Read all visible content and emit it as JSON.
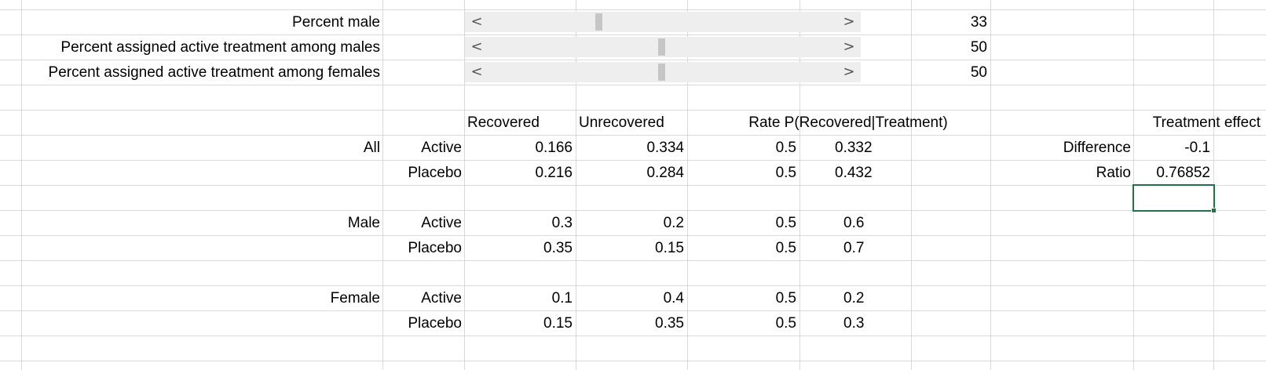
{
  "controls": [
    {
      "label": "Percent male",
      "value": "33",
      "fraction": 0.33
    },
    {
      "label": "Percent assigned active treatment among males",
      "value": "50",
      "fraction": 0.5
    },
    {
      "label": "Percent assigned active treatment among females",
      "value": "50",
      "fraction": 0.5
    }
  ],
  "headers": {
    "recovered": "Recovered",
    "unrecovered": "Unrecovered",
    "rate": "Rate P(Recovered|Treatment)",
    "treatment_effect": "Treatment effect"
  },
  "groups": {
    "all": "All",
    "male": "Male",
    "female": "Female"
  },
  "rows": {
    "all_active": {
      "treatment": "Active",
      "recovered": "0.166",
      "unrecovered": "0.334",
      "p": "0.5",
      "rate": "0.332"
    },
    "all_placebo": {
      "treatment": "Placebo",
      "recovered": "0.216",
      "unrecovered": "0.284",
      "p": "0.5",
      "rate": "0.432"
    },
    "male_active": {
      "treatment": "Active",
      "recovered": "0.3",
      "unrecovered": "0.2",
      "p": "0.5",
      "rate": "0.6"
    },
    "male_placebo": {
      "treatment": "Placebo",
      "recovered": "0.35",
      "unrecovered": "0.15",
      "p": "0.5",
      "rate": "0.7"
    },
    "female_active": {
      "treatment": "Active",
      "recovered": "0.1",
      "unrecovered": "0.4",
      "p": "0.5",
      "rate": "0.2"
    },
    "female_placebo": {
      "treatment": "Placebo",
      "recovered": "0.15",
      "unrecovered": "0.35",
      "p": "0.5",
      "rate": "0.3"
    }
  },
  "effect": {
    "difference_label": "Difference",
    "difference_value": "-0.1",
    "ratio_label": "Ratio",
    "ratio_value": "0.76852"
  },
  "arrows": {
    "left": "<",
    "right": ">"
  },
  "colors": {
    "gridline": "#d9d9d9",
    "selection": "#217346",
    "scroll_track": "#eeeeee",
    "scroll_thumb": "#c6c6c6"
  }
}
